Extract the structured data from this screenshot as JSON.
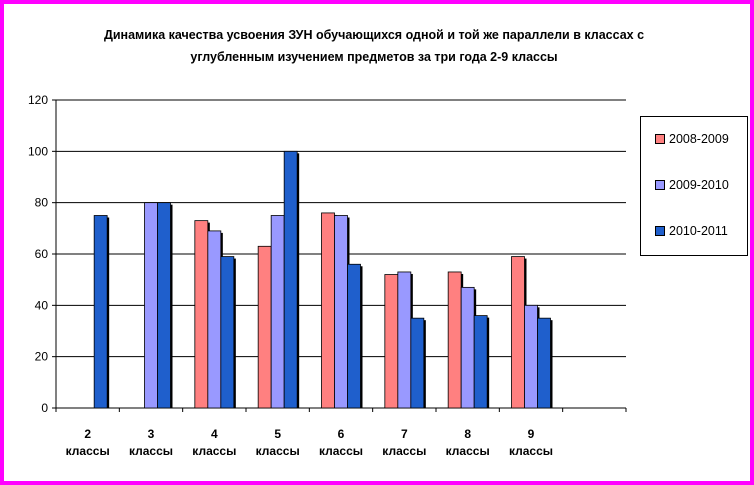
{
  "chart_data": {
    "type": "bar",
    "title": "Динамика  качества усвоения ЗУН обучающихся одной и той же параллели в классах с углубленным изучением предметов за три года 2-9 классы",
    "xlabel": "",
    "ylabel": "",
    "ylim": [
      0,
      120
    ],
    "yticks": [
      "0",
      "20",
      "40",
      "60",
      "80",
      "100",
      "120"
    ],
    "grid": true,
    "legend_position": "right",
    "categories": [
      "2",
      "3",
      "4",
      "5",
      "6",
      "7",
      "8",
      "9"
    ],
    "category_sublabel": "классы",
    "series": [
      {
        "name": "2008-2009",
        "color": "#ff8080",
        "values": [
          null,
          null,
          73,
          63,
          76,
          52,
          53,
          59
        ]
      },
      {
        "name": "2009-2010",
        "color": "#9999ff",
        "values": [
          null,
          80,
          69,
          75,
          75,
          53,
          47,
          40
        ]
      },
      {
        "name": "2010-2011",
        "color": "#1f5fcc",
        "values": [
          75,
          80,
          59,
          100,
          56,
          35,
          36,
          35
        ]
      }
    ]
  }
}
